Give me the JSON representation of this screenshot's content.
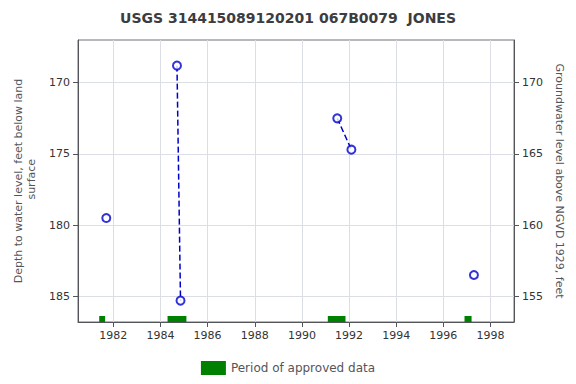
{
  "chart_data": {
    "type": "scatter",
    "title": "USGS 314415089120201 067B0079  JONES",
    "ylabel": "Depth to water level, feet below land\n surface",
    "y2label": "Groundwater level above NGVD 1929, feet",
    "xlim": [
      1980.5,
      1999.0
    ],
    "xticks": [
      1982,
      1984,
      1986,
      1988,
      1990,
      1992,
      1994,
      1996,
      1998
    ],
    "ylim": [
      186.8,
      167.0
    ],
    "yticks": [
      170,
      175,
      180,
      185
    ],
    "y2lim": [
      153.2,
      173.0
    ],
    "y2ticks": [
      155,
      160,
      165,
      170
    ],
    "grid": true,
    "legend": "bottom",
    "series": [
      {
        "type": "scatter",
        "x": [
          1981.7,
          1984.7,
          1984.85,
          1991.5,
          1992.1,
          1997.3
        ],
        "values": [
          179.5,
          168.8,
          185.3,
          172.5,
          174.7,
          183.5
        ],
        "color": "#0000CC",
        "marker": "circle"
      },
      {
        "type": "line",
        "segments": [
          [
            [
              1984.7,
              168.8
            ],
            [
              1984.85,
              185.3
            ]
          ],
          [
            [
              1991.5,
              172.5
            ],
            [
              1992.1,
              174.7
            ]
          ]
        ],
        "color": "#0000CC",
        "line_style": "dashed"
      },
      {
        "type": "period",
        "name": "Period of approved data",
        "color": "#008000",
        "periods": [
          [
            1981.4,
            1981.65
          ],
          [
            1984.3,
            1985.1
          ],
          [
            1991.1,
            1991.85
          ],
          [
            1996.9,
            1997.2
          ]
        ]
      }
    ]
  }
}
